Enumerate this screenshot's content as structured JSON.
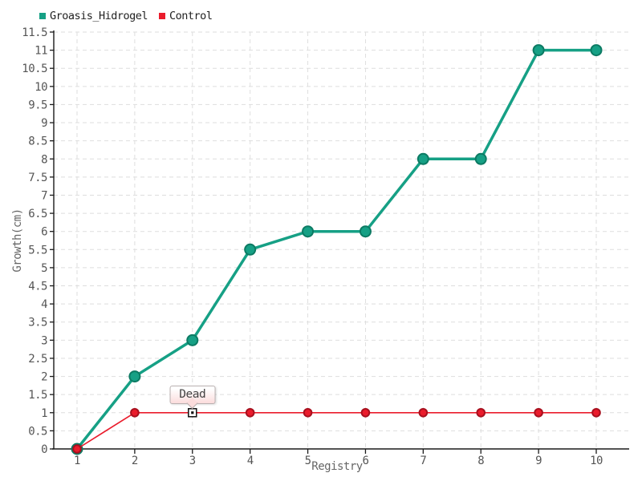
{
  "chart_data": {
    "type": "line",
    "title": "",
    "xlabel": "Registry",
    "ylabel": "Growth(cm)",
    "x": [
      1,
      2,
      3,
      4,
      5,
      6,
      7,
      8,
      9,
      10
    ],
    "x_ticks": [
      "1",
      "2",
      "3",
      "4",
      "5",
      "6",
      "7",
      "8",
      "9",
      "10"
    ],
    "ylim": [
      0,
      11.5
    ],
    "ytick_step": 0.5,
    "y_ticks": [
      "0",
      "0.5",
      "1",
      "1.5",
      "2",
      "2.5",
      "3",
      "3.5",
      "4",
      "4.5",
      "5",
      "5.5",
      "6",
      "6.5",
      "7",
      "7.5",
      "8",
      "8.5",
      "9",
      "9.5",
      "10",
      "10.5",
      "11",
      "11.5"
    ],
    "grid": "dashed-both-directions",
    "legend_position": "top-left",
    "series": [
      {
        "name": "Groasis_Hidrogel",
        "color": "#16a085",
        "marker_stroke": "#0c7a63",
        "line_width": 3.5,
        "marker_radius": 6.5,
        "values": [
          0,
          2,
          3,
          5.5,
          6,
          6,
          8,
          8,
          11,
          11
        ]
      },
      {
        "name": "Control",
        "color": "#ea1c2c",
        "marker_stroke": "#a8101e",
        "line_width": 1.6,
        "marker_radius": 4.8,
        "values": [
          0,
          1,
          1,
          1,
          1,
          1,
          1,
          1,
          1,
          1
        ]
      }
    ],
    "annotations": [
      {
        "text": "Dead",
        "x": 3,
        "y": 1,
        "series": "Control",
        "marker": "selected-white-square"
      }
    ],
    "colors": {
      "axis": "#1a1a1a",
      "grid": "#dedede",
      "tick_text": "#555555",
      "axis_title_text": "#666666",
      "legend_text": "#222222",
      "tooltip_text": "#444444",
      "tooltip_bg_top": "#ffffff",
      "tooltip_bg_bottom": "#fbdcdc"
    }
  }
}
